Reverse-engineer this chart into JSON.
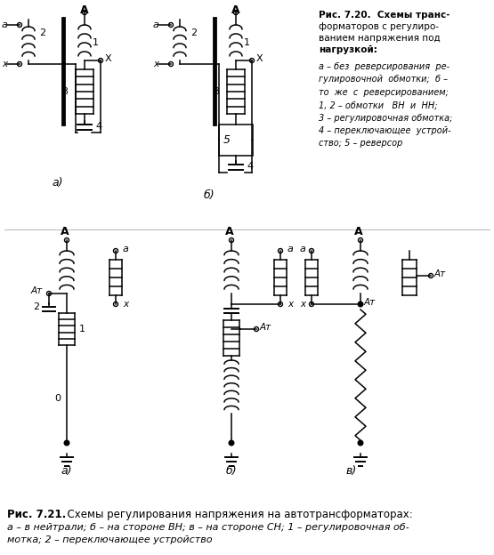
{
  "background_color": "#ffffff",
  "fig720_title": "Рис. 7.20.  Схемы транс-",
  "fig720_line2": "форматоров с регулиро-",
  "fig720_line3": "ванием напряжения под",
  "fig720_line4": "нагрузкой:",
  "fig720_detail": "а – без  реверсирования  ре-\nгулировочной  обмотки;  б –\nто  же  с  реверсированием;\n1, 2 – обмотки   ВН  и  НН;\n3 – регулировочная обмотка;\n4 – переключающее  устрой-\nство; 5 – реверсор",
  "fig721_title": "Рис. 7.21.  Схемы регулирования напряжения на автотрансформаторах:",
  "fig721_detail1": "а – в нейтрали; б – на стороне ВН; в – на стороне СН; 1 – регулировочная об-",
  "fig721_detail2": "мотка; 2 – переключающее устройство"
}
